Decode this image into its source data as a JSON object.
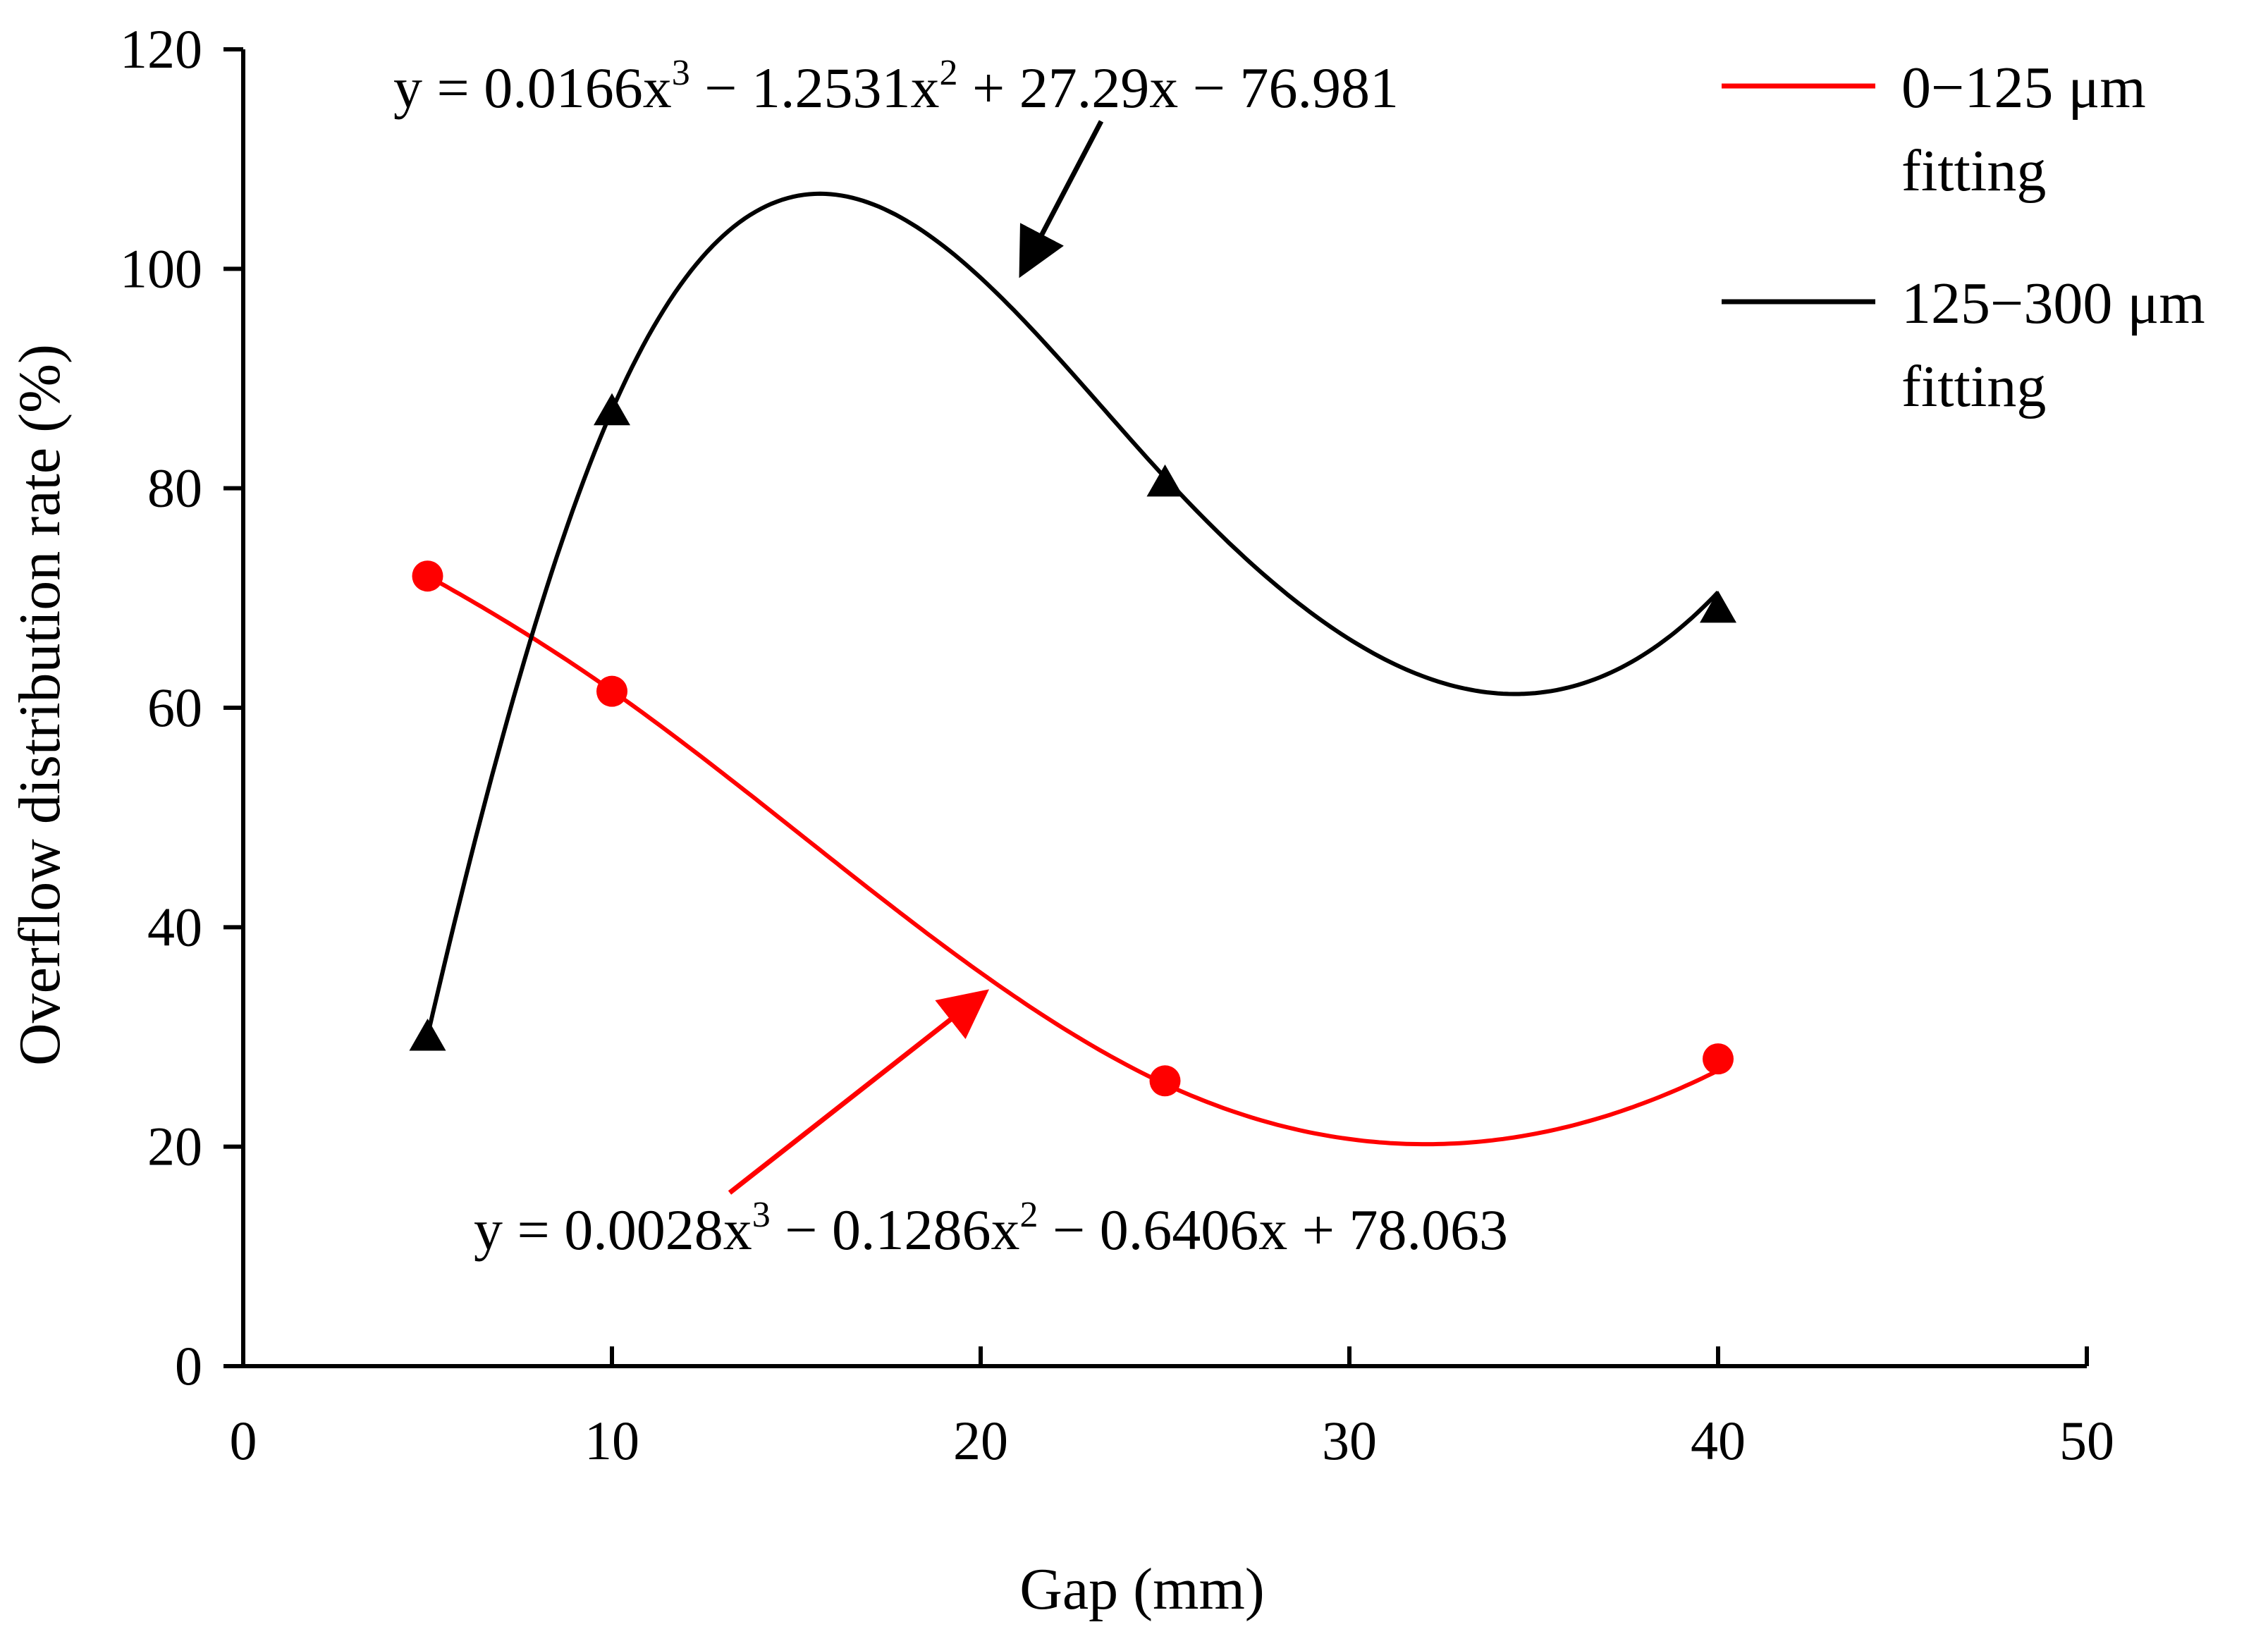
{
  "chart_data": {
    "type": "line",
    "title": "",
    "xlabel": "Gap (mm)",
    "ylabel": "Overflow distribution rate (%)",
    "xlim": [
      0,
      50
    ],
    "ylim": [
      0,
      120
    ],
    "xticks": [
      0,
      10,
      20,
      30,
      40,
      50
    ],
    "yticks": [
      0,
      20,
      40,
      60,
      80,
      100,
      120
    ],
    "grid": false,
    "legend_position": "top-right",
    "series": [
      {
        "name": "0−125 μm fitting",
        "legend_line1": "0−125 μm",
        "legend_line2": "fitting",
        "color": "#ff0000",
        "marker": "circle",
        "x": [
          5,
          10,
          25,
          40
        ],
        "y": [
          72,
          61.5,
          26,
          28
        ],
        "coefficients": [
          0.0028,
          -0.1286,
          -0.6406,
          78.063
        ],
        "equation_base": "y = 0.0028x",
        "equation_exp1": "3",
        "equation_mid": " − 0.1286x",
        "equation_exp2": "2",
        "equation_end": " − 0.6406x + 78.063"
      },
      {
        "name": "125−300 μm fitting",
        "legend_line1": "125−300 μm",
        "legend_line2": "fitting",
        "color": "#000000",
        "marker": "triangle",
        "x": [
          5,
          10,
          25,
          40
        ],
        "y": [
          30,
          87,
          80.5,
          69
        ],
        "coefficients": [
          0.0166,
          -1.2531,
          27.29,
          -76.981
        ],
        "equation_base": "y = 0.0166x",
        "equation_exp1": "3",
        "equation_mid": " − 1.2531x",
        "equation_exp2": "2",
        "equation_end": " + 27.29x − 76.981"
      }
    ]
  }
}
